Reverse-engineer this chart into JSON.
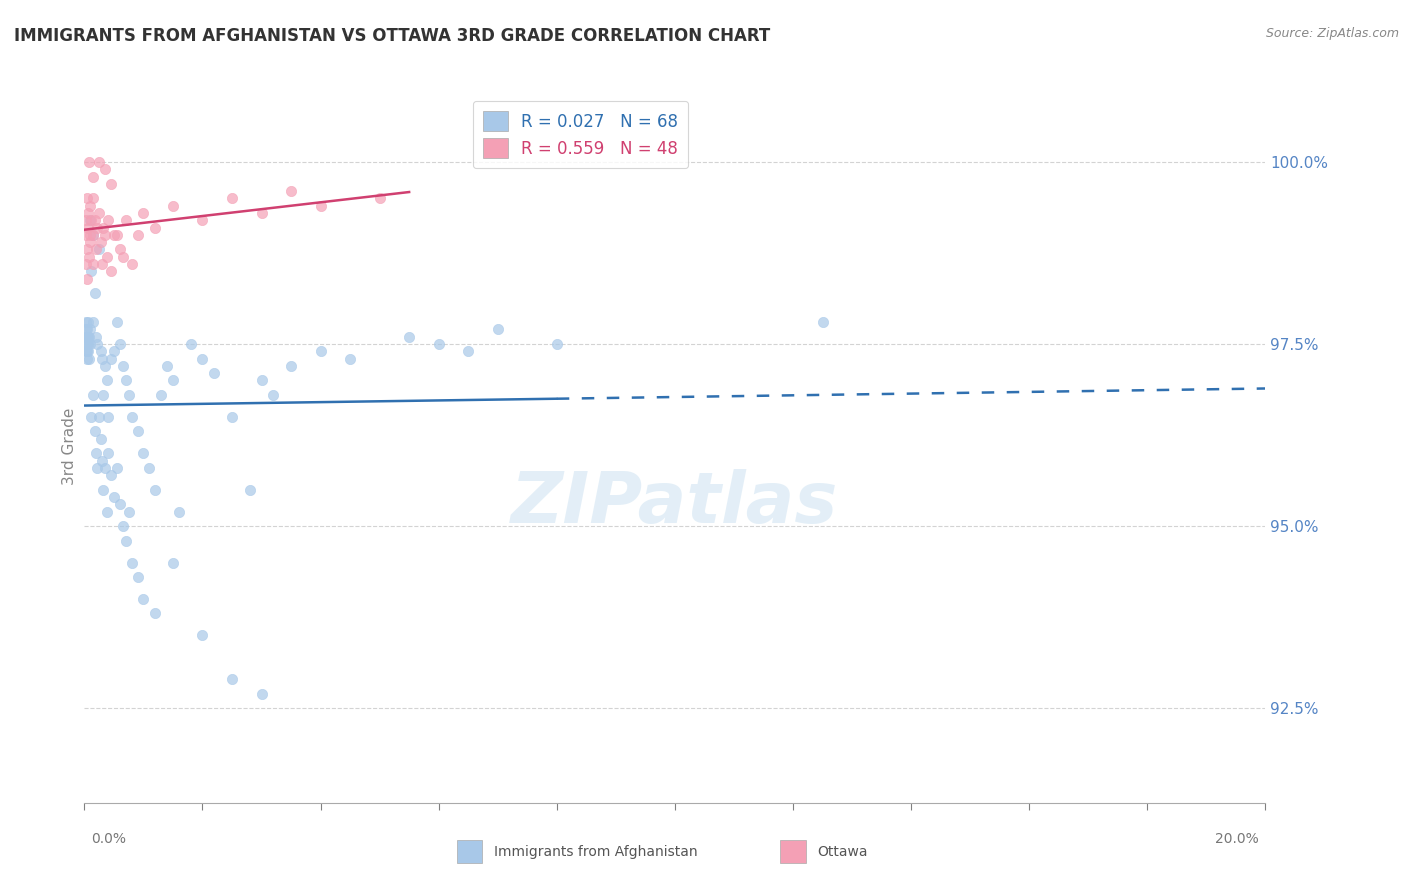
{
  "title": "IMMIGRANTS FROM AFGHANISTAN VS OTTAWA 3RD GRADE CORRELATION CHART",
  "source": "Source: ZipAtlas.com",
  "ylabel": "3rd Grade",
  "xlim": [
    0.0,
    20.0
  ],
  "ylim": [
    91.2,
    101.0
  ],
  "yticks": [
    92.5,
    95.0,
    97.5,
    100.0
  ],
  "ytick_labels": [
    "92.5%",
    "95.0%",
    "97.5%",
    "100.0%"
  ],
  "blue_color": "#a8c8e8",
  "pink_color": "#f4a0b5",
  "blue_line_color": "#3070b0",
  "pink_line_color": "#d04070",
  "legend_R_blue": "R = 0.027",
  "legend_N_blue": "N = 68",
  "legend_R_pink": "R = 0.559",
  "legend_N_pink": "N = 48",
  "watermark": "ZIPatlas",
  "tick_color": "#5585c5"
}
